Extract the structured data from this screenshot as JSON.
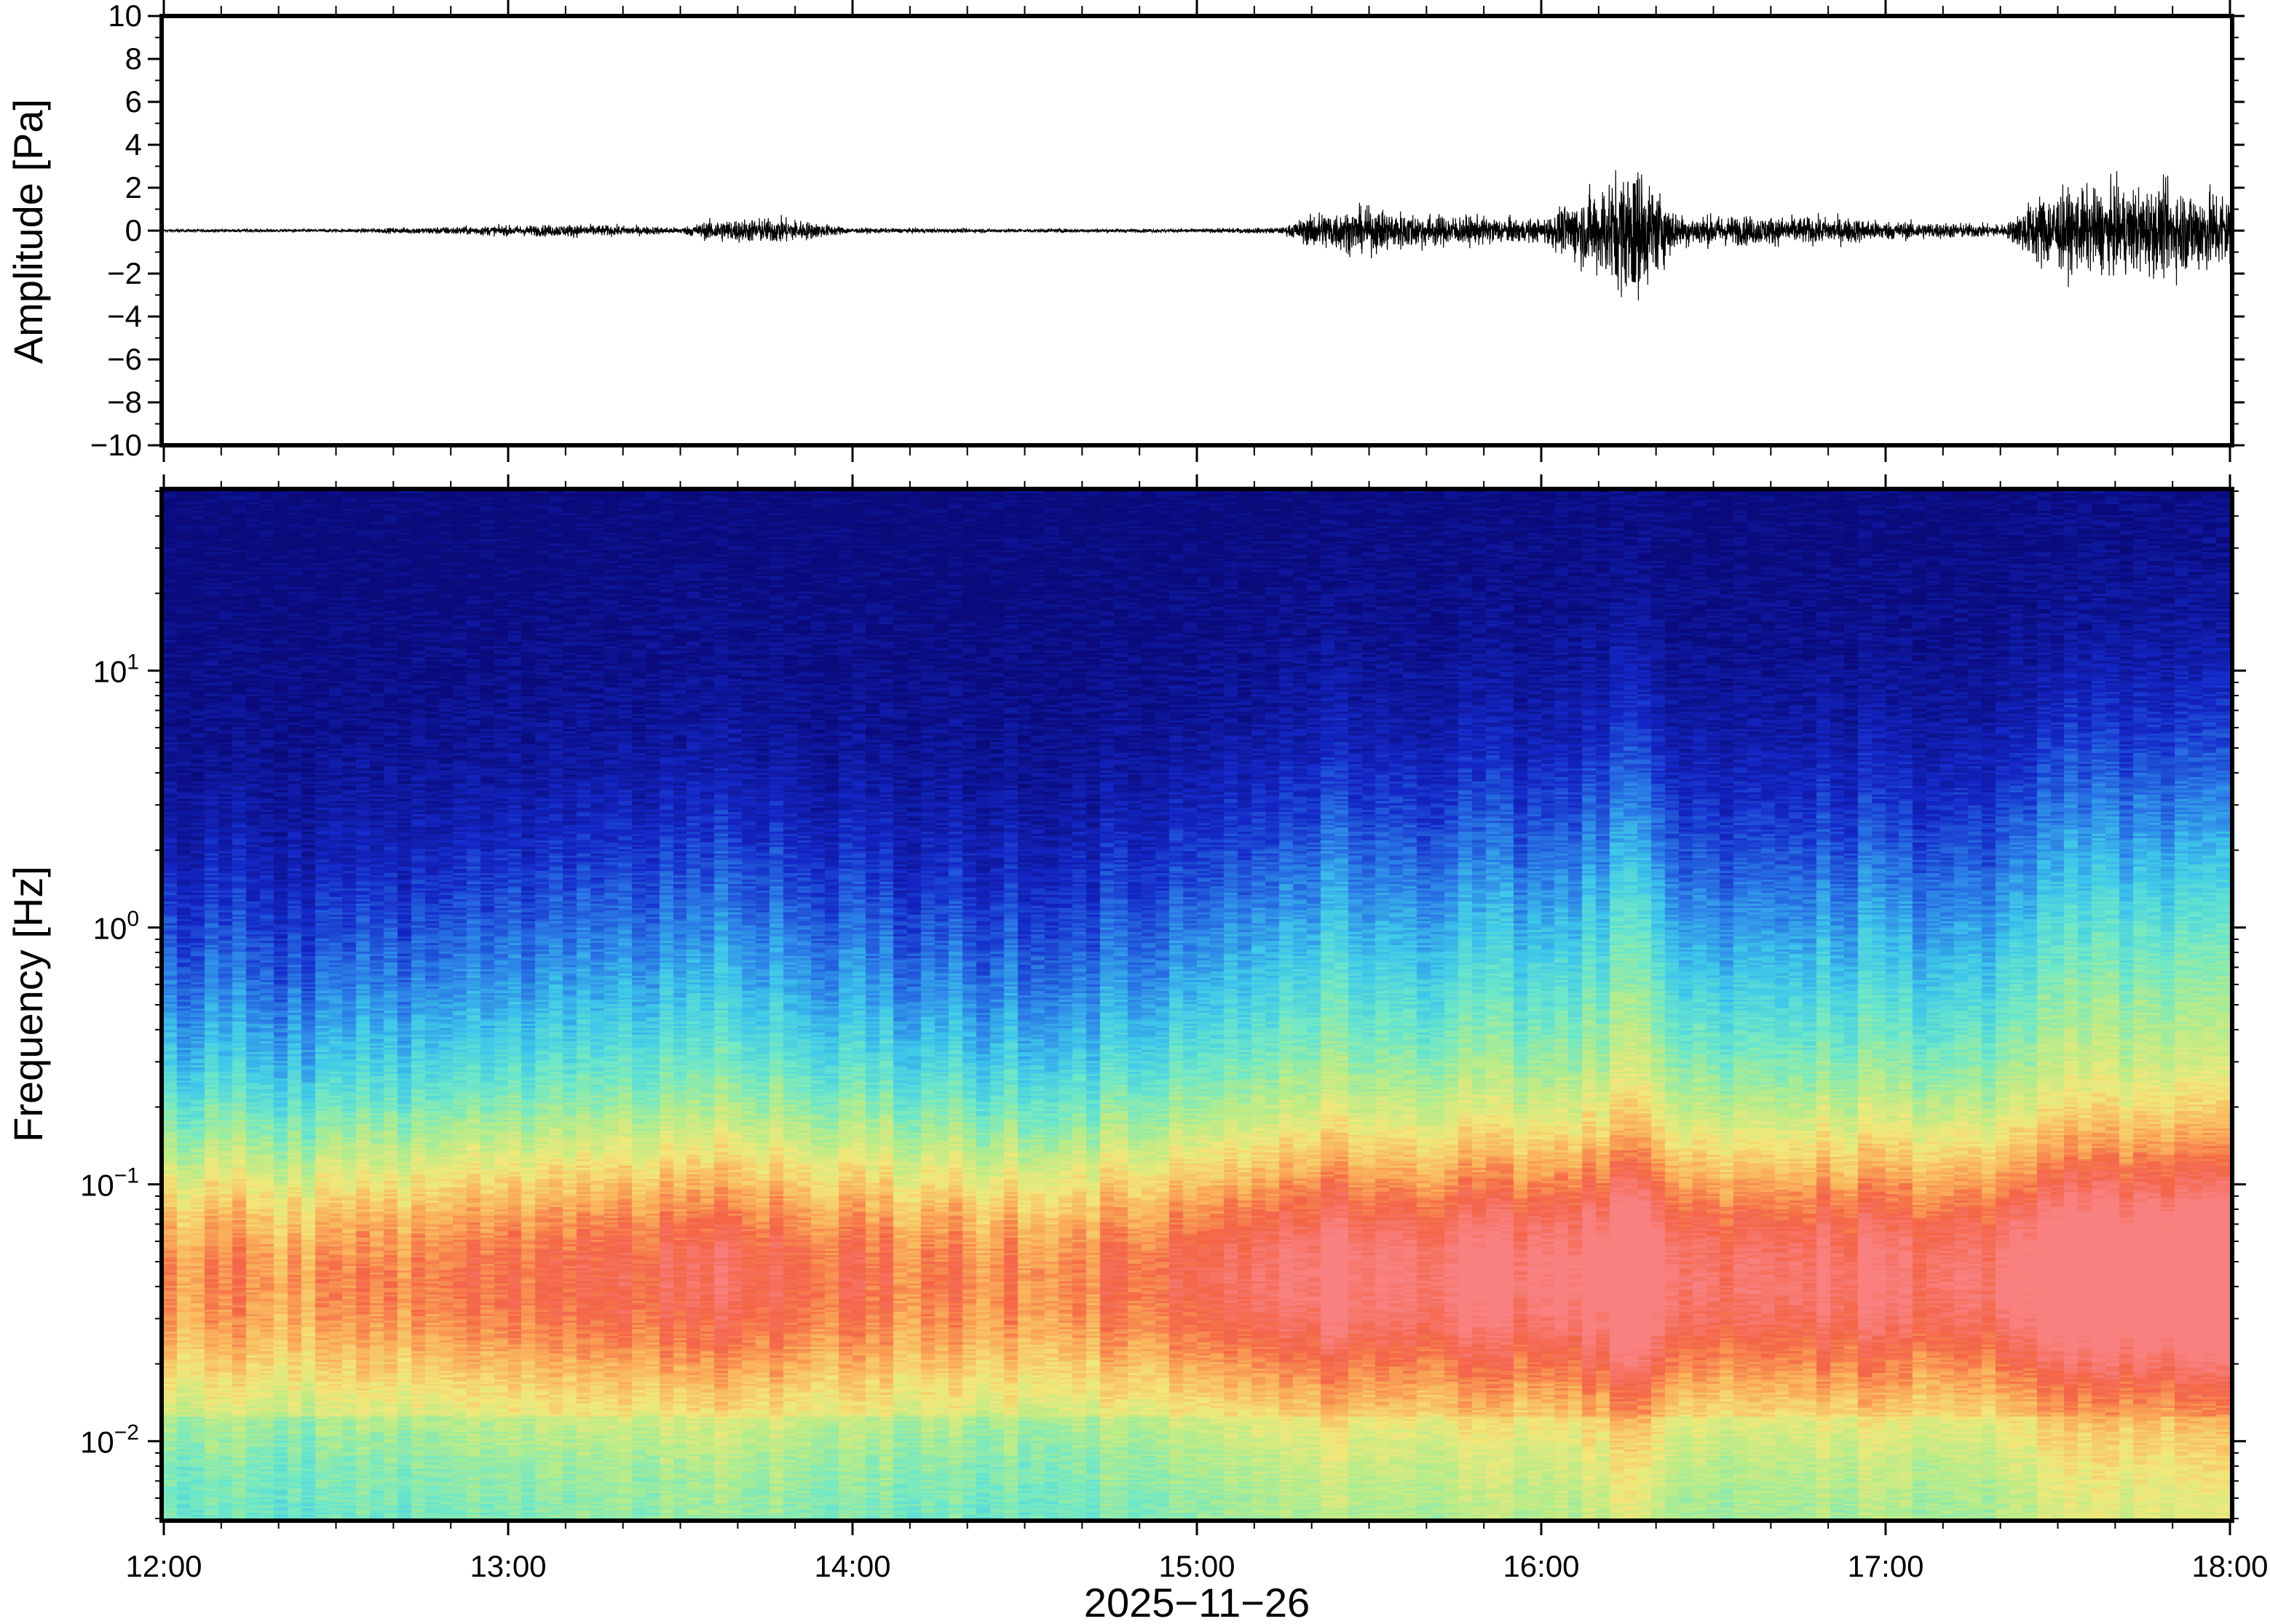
{
  "chart_data": [
    {
      "type": "line",
      "ylabel": "Amplitude [Pa]",
      "ylim": [
        -10,
        10
      ],
      "yticks": [
        -10,
        -8,
        -6,
        -4,
        -2,
        0,
        2,
        4,
        6,
        8,
        10
      ],
      "ytick_labels": [
        "−10",
        "−8",
        "−6",
        "−4",
        "−2",
        "0",
        "2",
        "4",
        "6",
        "8",
        "10"
      ],
      "xlim": [
        "12:00",
        "18:00"
      ],
      "grid": false,
      "line_color": "#000000",
      "envelope_hours": [
        12.0,
        12.5,
        12.95,
        13.2,
        13.5,
        13.6,
        13.8,
        14.0,
        14.5,
        15.0,
        15.25,
        15.35,
        15.5,
        15.7,
        16.0,
        16.15,
        16.27,
        16.4,
        16.9,
        17.0,
        17.35,
        17.45,
        17.6,
        17.8,
        18.0
      ],
      "envelope_amplitude_pa": [
        0.05,
        0.05,
        0.15,
        0.2,
        0.1,
        0.35,
        0.4,
        0.08,
        0.06,
        0.06,
        0.1,
        0.6,
        0.7,
        0.5,
        0.35,
        1.3,
        2.2,
        0.5,
        0.4,
        0.3,
        0.2,
        1.2,
        1.3,
        1.4,
        1.3
      ]
    },
    {
      "type": "heatmap",
      "ylabel": "Frequency [Hz]",
      "xlabel": "2025−11−26",
      "yscale": "log",
      "ylim": [
        0.005,
        50
      ],
      "yticks": [
        0.01,
        0.1,
        1,
        10
      ],
      "ytick_labels": [
        {
          "base": "10",
          "exp": "−2"
        },
        {
          "base": "10",
          "exp": "−1"
        },
        {
          "base": "10",
          "exp": "0"
        },
        {
          "base": "10",
          "exp": "1"
        }
      ],
      "xticks": [
        12,
        13,
        14,
        15,
        16,
        17,
        18
      ],
      "xtick_labels": [
        "12:00",
        "13:00",
        "14:00",
        "15:00",
        "16:00",
        "17:00",
        "18:00"
      ],
      "colormap": [
        "#0a0a7a",
        "#1428c8",
        "#2a7ae6",
        "#3ec8ea",
        "#6ee8c8",
        "#b6ec8a",
        "#f2e87a",
        "#fab05a",
        "#f46446",
        "#f8807e"
      ],
      "time_hours": [
        12.0,
        12.5,
        13.0,
        13.25,
        13.5,
        13.7,
        14.0,
        14.5,
        15.0,
        15.3,
        15.6,
        16.0,
        16.25,
        16.5,
        17.0,
        17.3,
        17.5,
        18.0
      ],
      "background_level": [
        0.4,
        0.35,
        0.5,
        0.52,
        0.6,
        0.62,
        0.5,
        0.4,
        0.55,
        0.72,
        0.74,
        0.72,
        0.9,
        0.65,
        0.7,
        0.6,
        0.92,
        0.95
      ]
    }
  ]
}
